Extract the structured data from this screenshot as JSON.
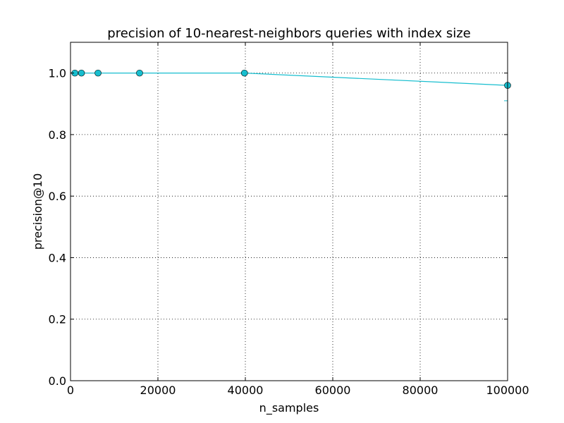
{
  "chart_data": {
    "type": "line",
    "title": "precision of 10-nearest-neighbors queries with index size",
    "xlabel": "n_samples",
    "ylabel": "precision@10",
    "xlim": [
      0,
      100000
    ],
    "ylim": [
      0.0,
      1.1
    ],
    "xticks": [
      0,
      20000,
      40000,
      60000,
      80000,
      100000
    ],
    "xtick_labels": [
      "0",
      "20000",
      "40000",
      "60000",
      "80000",
      "100000"
    ],
    "yticks": [
      0.0,
      0.2,
      0.4,
      0.6,
      0.8,
      1.0
    ],
    "ytick_labels": [
      "0.0",
      "0.2",
      "0.4",
      "0.6",
      "0.8",
      "1.0"
    ],
    "grid": true,
    "series": [
      {
        "color": "#17becf",
        "marker": "circle",
        "x": [
          1000,
          2500,
          6300,
          15800,
          39800,
          100000
        ],
        "y": [
          1.0,
          1.0,
          1.0,
          1.0,
          1.0,
          0.96
        ],
        "error": [
          0.0,
          0.0,
          0.0,
          0.0,
          0.0,
          0.05
        ]
      }
    ]
  }
}
